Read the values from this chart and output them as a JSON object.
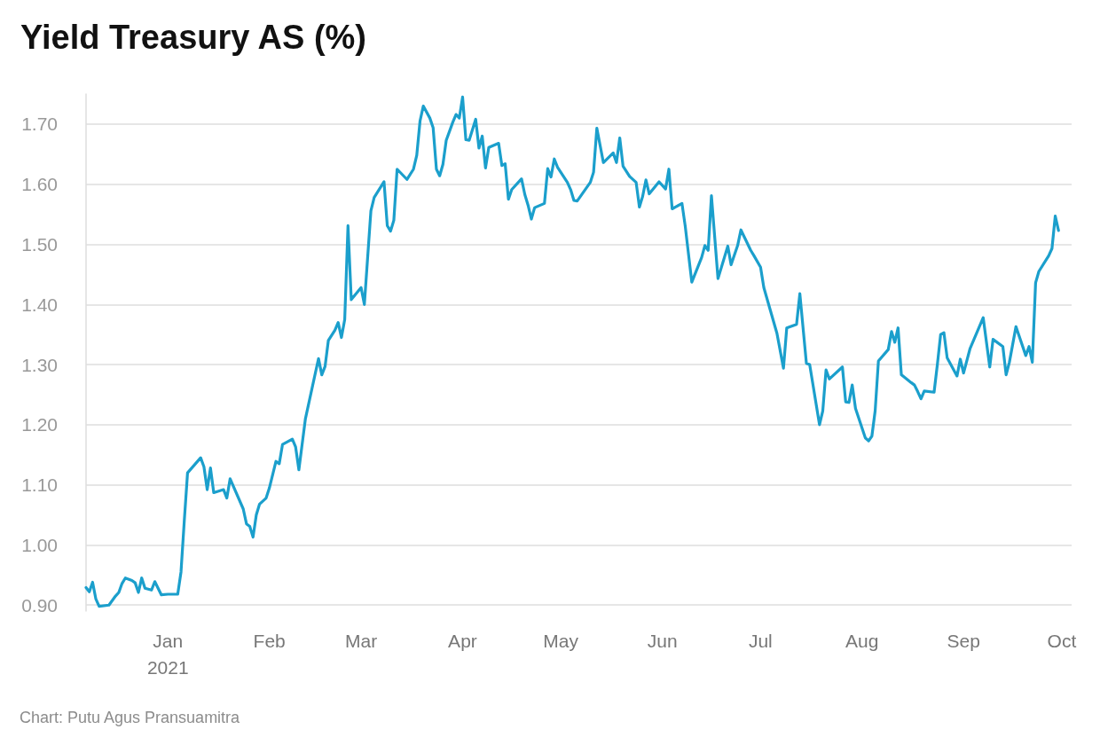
{
  "chart_data": {
    "type": "line",
    "title": "Yield Treasury AS (%)",
    "annotations": [
      "Chart: Putu Agus Pransuamitra"
    ],
    "x": [
      "2020-12-07",
      "2020-12-08",
      "2020-12-09",
      "2020-12-10",
      "2020-12-11",
      "2020-12-14",
      "2020-12-16",
      "2020-12-17",
      "2020-12-18",
      "2020-12-19",
      "2020-12-21",
      "2020-12-22",
      "2020-12-23",
      "2020-12-24",
      "2020-12-25",
      "2020-12-27",
      "2020-12-28",
      "2020-12-30",
      "2021-01-01",
      "2021-01-04",
      "2021-01-05",
      "2021-01-06",
      "2021-01-07",
      "2021-01-11",
      "2021-01-12",
      "2021-01-13",
      "2021-01-14",
      "2021-01-15",
      "2021-01-18",
      "2021-01-19",
      "2021-01-20",
      "2021-01-24",
      "2021-01-25",
      "2021-01-26",
      "2021-01-27",
      "2021-01-28",
      "2021-01-29",
      "2021-01-31",
      "2021-02-01",
      "2021-02-03",
      "2021-02-04",
      "2021-02-05",
      "2021-02-08",
      "2021-02-09",
      "2021-02-10",
      "2021-02-12",
      "2021-02-14",
      "2021-02-16",
      "2021-02-17",
      "2021-02-18",
      "2021-02-19",
      "2021-02-21",
      "2021-02-22",
      "2021-02-23",
      "2021-02-24",
      "2021-02-25",
      "2021-02-26",
      "2021-03-01",
      "2021-03-02",
      "2021-03-04",
      "2021-03-05",
      "2021-03-08",
      "2021-03-09",
      "2021-03-10",
      "2021-03-11",
      "2021-03-12",
      "2021-03-15",
      "2021-03-17",
      "2021-03-18",
      "2021-03-19",
      "2021-03-20",
      "2021-03-22",
      "2021-03-23",
      "2021-03-24",
      "2021-03-25",
      "2021-03-26",
      "2021-03-27",
      "2021-03-29",
      "2021-03-30",
      "2021-03-31",
      "2021-04-01",
      "2021-04-02",
      "2021-04-03",
      "2021-04-05",
      "2021-04-06",
      "2021-04-07",
      "2021-04-08",
      "2021-04-09",
      "2021-04-12",
      "2021-04-13",
      "2021-04-14",
      "2021-04-15",
      "2021-04-16",
      "2021-04-19",
      "2021-04-20",
      "2021-04-21",
      "2021-04-22",
      "2021-04-23",
      "2021-04-26",
      "2021-04-27",
      "2021-04-28",
      "2021-04-29",
      "2021-04-30",
      "2021-05-03",
      "2021-05-04",
      "2021-05-05",
      "2021-05-06",
      "2021-05-10",
      "2021-05-11",
      "2021-05-12",
      "2021-05-14",
      "2021-05-17",
      "2021-05-18",
      "2021-05-19",
      "2021-05-20",
      "2021-05-22",
      "2021-05-24",
      "2021-05-25",
      "2021-05-26",
      "2021-05-27",
      "2021-05-28",
      "2021-05-31",
      "2021-06-02",
      "2021-06-03",
      "2021-06-04",
      "2021-06-07",
      "2021-06-08",
      "2021-06-10",
      "2021-06-13",
      "2021-06-14",
      "2021-06-15",
      "2021-06-16",
      "2021-06-18",
      "2021-06-21",
      "2021-06-22",
      "2021-06-24",
      "2021-06-25",
      "2021-06-28",
      "2021-06-29",
      "2021-07-01",
      "2021-07-02",
      "2021-07-04",
      "2021-07-06",
      "2021-07-08",
      "2021-07-09",
      "2021-07-12",
      "2021-07-13",
      "2021-07-15",
      "2021-07-16",
      "2021-07-19",
      "2021-07-20",
      "2021-07-21",
      "2021-07-22",
      "2021-07-26",
      "2021-07-27",
      "2021-07-28",
      "2021-07-29",
      "2021-07-30",
      "2021-08-02",
      "2021-08-03",
      "2021-08-04",
      "2021-08-05",
      "2021-08-06",
      "2021-08-09",
      "2021-08-10",
      "2021-08-11",
      "2021-08-12",
      "2021-08-13",
      "2021-08-16",
      "2021-08-17",
      "2021-08-18",
      "2021-08-19",
      "2021-08-20",
      "2021-08-23",
      "2021-08-24",
      "2021-08-25",
      "2021-08-26",
      "2021-08-27",
      "2021-08-30",
      "2021-08-31",
      "2021-09-01",
      "2021-09-03",
      "2021-09-07",
      "2021-09-09",
      "2021-09-10",
      "2021-09-13",
      "2021-09-14",
      "2021-09-15",
      "2021-09-17",
      "2021-09-20",
      "2021-09-21",
      "2021-09-22",
      "2021-09-23",
      "2021-09-24",
      "2021-09-27",
      "2021-09-28",
      "2021-09-29",
      "2021-09-30"
    ],
    "series": [
      {
        "color": "#1b9fcc",
        "values": [
          0.929,
          0.922,
          0.938,
          0.91,
          0.898,
          0.9,
          0.915,
          0.921,
          0.936,
          0.945,
          0.941,
          0.937,
          0.921,
          0.945,
          0.928,
          0.925,
          0.939,
          0.917,
          0.918,
          0.918,
          0.955,
          1.04,
          1.12,
          1.145,
          1.13,
          1.092,
          1.128,
          1.087,
          1.092,
          1.078,
          1.11,
          1.06,
          1.035,
          1.031,
          1.013,
          1.05,
          1.068,
          1.078,
          1.095,
          1.139,
          1.135,
          1.167,
          1.176,
          1.163,
          1.125,
          1.21,
          1.26,
          1.31,
          1.283,
          1.297,
          1.34,
          1.357,
          1.37,
          1.345,
          1.375,
          1.531,
          1.408,
          1.428,
          1.4,
          1.556,
          1.578,
          1.604,
          1.531,
          1.522,
          1.54,
          1.625,
          1.608,
          1.625,
          1.648,
          1.705,
          1.73,
          1.71,
          1.694,
          1.625,
          1.614,
          1.633,
          1.673,
          1.703,
          1.716,
          1.71,
          1.745,
          1.674,
          1.673,
          1.708,
          1.66,
          1.68,
          1.627,
          1.661,
          1.668,
          1.631,
          1.634,
          1.575,
          1.591,
          1.609,
          1.583,
          1.565,
          1.542,
          1.561,
          1.568,
          1.626,
          1.612,
          1.642,
          1.628,
          1.603,
          1.591,
          1.573,
          1.572,
          1.603,
          1.62,
          1.693,
          1.636,
          1.652,
          1.636,
          1.677,
          1.63,
          1.613,
          1.603,
          1.562,
          1.58,
          1.607,
          1.584,
          1.604,
          1.592,
          1.625,
          1.559,
          1.568,
          1.53,
          1.437,
          1.478,
          1.498,
          1.49,
          1.581,
          1.443,
          1.497,
          1.466,
          1.498,
          1.524,
          1.49,
          1.481,
          1.462,
          1.428,
          1.39,
          1.352,
          1.294,
          1.361,
          1.367,
          1.418,
          1.302,
          1.3,
          1.2,
          1.223,
          1.291,
          1.276,
          1.296,
          1.238,
          1.237,
          1.266,
          1.227,
          1.178,
          1.173,
          1.181,
          1.223,
          1.306,
          1.325,
          1.355,
          1.337,
          1.361,
          1.283,
          1.27,
          1.266,
          1.255,
          1.243,
          1.256,
          1.254,
          1.3,
          1.35,
          1.353,
          1.311,
          1.281,
          1.309,
          1.286,
          1.327,
          1.378,
          1.296,
          1.342,
          1.33,
          1.283,
          1.304,
          1.363,
          1.315,
          1.33,
          1.304,
          1.436,
          1.455,
          1.481,
          1.493,
          1.547,
          1.523
        ]
      }
    ],
    "xlim": [
      "2020-12-07",
      "2021-10-04"
    ],
    "xticks": [
      {
        "value": "2021-01-01",
        "label": "Jan\n2021"
      },
      {
        "value": "2021-02-01",
        "label": "Feb"
      },
      {
        "value": "2021-03-01",
        "label": "Mar"
      },
      {
        "value": "2021-04-01",
        "label": "Apr"
      },
      {
        "value": "2021-05-01",
        "label": "May"
      },
      {
        "value": "2021-06-01",
        "label": "Jun"
      },
      {
        "value": "2021-07-01",
        "label": "Jul"
      },
      {
        "value": "2021-08-01",
        "label": "Aug"
      },
      {
        "value": "2021-09-01",
        "label": "Sep"
      },
      {
        "value": "2021-10-01",
        "label": "Oct"
      }
    ],
    "ylim": [
      0.89,
      1.75
    ],
    "yticks": [
      {
        "value": 0.9,
        "label": "0.90"
      },
      {
        "value": 1.0,
        "label": "1.00"
      },
      {
        "value": 1.1,
        "label": "1.10"
      },
      {
        "value": 1.2,
        "label": "1.20"
      },
      {
        "value": 1.3,
        "label": "1.30"
      },
      {
        "value": 1.4,
        "label": "1.40"
      },
      {
        "value": 1.5,
        "label": "1.50"
      },
      {
        "value": 1.6,
        "label": "1.60"
      },
      {
        "value": 1.7,
        "label": "1.70"
      }
    ],
    "grid": "y",
    "marker": "none",
    "line_style": "solid"
  }
}
